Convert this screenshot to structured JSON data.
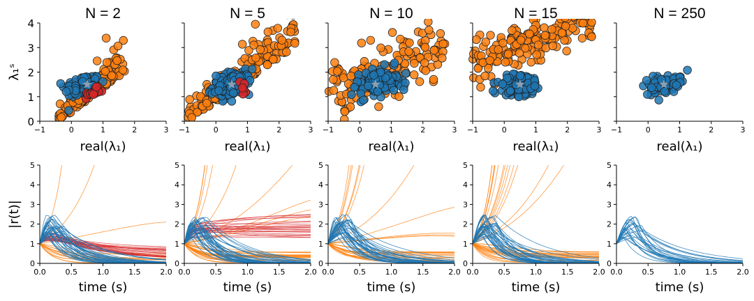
{
  "chart_data": {
    "type": "scatter",
    "colors": {
      "unstable": "#ff7f0e",
      "stable": "#1f77b4",
      "highlight": "#d62728",
      "star": "#8c9fb0"
    },
    "top_row": {
      "xlabel": "real(λ₁)",
      "ylabel": "λ₁ˢ",
      "xlim": [
        -1,
        3
      ],
      "ylim": [
        0,
        4
      ],
      "xticks": [
        "−1",
        "0",
        "1",
        "2",
        "3"
      ],
      "yticks": [
        "0",
        "1",
        "2",
        "3",
        "4"
      ],
      "star": [
        0.5,
        1.5
      ]
    },
    "bottom_row": {
      "xlabel": "time (s)",
      "ylabel": "|r(t)|",
      "xlim": [
        0,
        2
      ],
      "ylim": [
        0,
        5
      ],
      "xticks": [
        "0.0",
        "0.5",
        "1.0",
        "1.5",
        "2.0"
      ],
      "yticks": [
        "0",
        "1",
        "2",
        "3",
        "4",
        "5"
      ]
    },
    "panels": [
      {
        "title": "N = 2",
        "stable": {
          "cx": 0.35,
          "cy": 1.45,
          "sx": 0.28,
          "sy": 0.22,
          "n": 110
        },
        "unstable": {
          "shape": "wedge",
          "x0": -0.4,
          "x1": 1.7,
          "slope": 0.95,
          "width": 0.45,
          "n": 140
        },
        "highlight": {
          "cx": 0.7,
          "cy": 1.18,
          "sx": 0.15,
          "sy": 0.08,
          "n": 18
        },
        "curves": {
          "blue": 35,
          "orange": 14,
          "red": 22,
          "orange_explode": 3,
          "red_end": [
            0.15,
            0.8
          ]
        }
      },
      {
        "title": "N = 5",
        "stable": {
          "cx": 0.5,
          "cy": 1.5,
          "sx": 0.3,
          "sy": 0.25,
          "n": 120
        },
        "unstable": {
          "shape": "wedge",
          "x0": -0.9,
          "x1": 2.5,
          "slope": 0.9,
          "width": 0.55,
          "n": 170
        },
        "highlight": {
          "cx": 0.85,
          "cy": 1.35,
          "sx": 0.05,
          "sy": 0.17,
          "n": 6
        },
        "curves": {
          "blue": 35,
          "orange": 22,
          "red": 22,
          "orange_explode": 9,
          "red_end": [
            1.2,
            2.6
          ]
        }
      },
      {
        "title": "N = 10",
        "stable": {
          "cx": 0.6,
          "cy": 1.6,
          "sx": 0.35,
          "sy": 0.3,
          "n": 110
        },
        "unstable": {
          "shape": "band",
          "x0": -1.0,
          "x1": 2.7,
          "slope": 0.55,
          "intercept": 1.6,
          "width": 0.5,
          "n": 150
        },
        "highlight": null,
        "curves": {
          "blue": 35,
          "orange": 18,
          "red": 0,
          "orange_explode": 11,
          "red_end": [
            0,
            0
          ]
        }
      },
      {
        "title": "N = 15",
        "stable": {
          "cx": 0.5,
          "cy": 1.45,
          "sx": 0.35,
          "sy": 0.25,
          "n": 110
        },
        "unstable": {
          "shape": "band",
          "x0": -1.0,
          "x1": 2.9,
          "slope": 0.5,
          "intercept": 2.9,
          "width": 0.45,
          "n": 180
        },
        "highlight": null,
        "curves": {
          "blue": 35,
          "orange": 20,
          "red": 0,
          "orange_explode": 14,
          "red_end": [
            0,
            0
          ]
        }
      },
      {
        "title": "N = 250",
        "stable": {
          "cx": 0.5,
          "cy": 1.45,
          "sx": 0.3,
          "sy": 0.2,
          "n": 90
        },
        "unstable": null,
        "highlight": null,
        "curves": {
          "blue": 25,
          "orange": 0,
          "red": 0,
          "orange_explode": 0,
          "red_end": [
            0,
            0
          ]
        }
      }
    ]
  }
}
